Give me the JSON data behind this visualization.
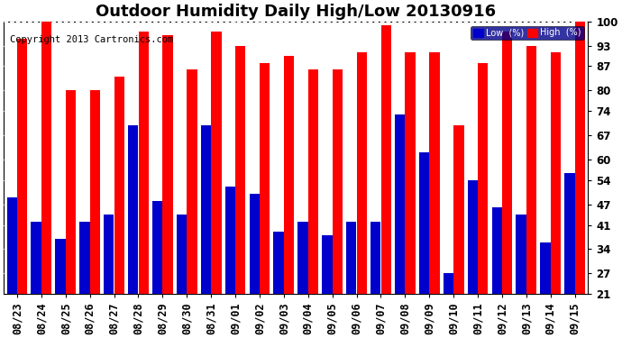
{
  "title": "Outdoor Humidity Daily High/Low 20130916",
  "copyright": "Copyright 2013 Cartronics.com",
  "dates": [
    "08/23",
    "08/24",
    "08/25",
    "08/26",
    "08/27",
    "08/28",
    "08/29",
    "08/30",
    "08/31",
    "09/01",
    "09/02",
    "09/03",
    "09/04",
    "09/05",
    "09/06",
    "09/07",
    "09/08",
    "09/09",
    "09/10",
    "09/11",
    "09/12",
    "09/13",
    "09/14",
    "09/15"
  ],
  "high": [
    95,
    100,
    80,
    80,
    84,
    97,
    96,
    86,
    97,
    93,
    88,
    90,
    86,
    86,
    91,
    99,
    91,
    91,
    70,
    88,
    97,
    93,
    91,
    100
  ],
  "low": [
    49,
    42,
    37,
    42,
    44,
    70,
    48,
    44,
    70,
    52,
    50,
    39,
    42,
    38,
    42,
    42,
    73,
    62,
    27,
    54,
    46,
    44,
    36,
    56
  ],
  "bar_color_high": "#ff0000",
  "bar_color_low": "#0000cc",
  "bg_color": "#ffffff",
  "plot_bg_color": "#ffffff",
  "yticks": [
    21,
    27,
    34,
    41,
    47,
    54,
    60,
    67,
    74,
    80,
    87,
    93,
    100
  ],
  "ymin": 21,
  "ymax": 100,
  "legend_low_label": "Low  (%)",
  "legend_high_label": "High  (%)",
  "title_fontsize": 13,
  "copyright_fontsize": 7.5,
  "tick_fontsize": 8.5
}
